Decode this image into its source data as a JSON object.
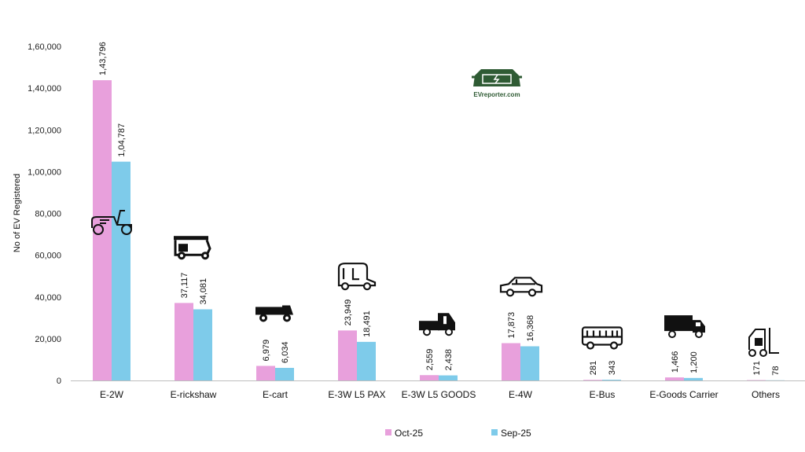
{
  "chart_data": {
    "type": "bar",
    "ylabel": "No of EV Registered",
    "xlabel": "",
    "ylim": [
      0,
      160000
    ],
    "yticks": [
      0,
      20000,
      40000,
      60000,
      80000,
      100000,
      120000,
      140000,
      160000
    ],
    "ytick_labels": [
      "0",
      "20,000",
      "40,000",
      "60,000",
      "80,000",
      "1,00,000",
      "1,20,000",
      "1,40,000",
      "1,60,000"
    ],
    "grid": false,
    "legend_position": "bottom",
    "categories": [
      "E-2W",
      "E-rickshaw",
      "E-cart",
      "E-3W L5 PAX",
      "E-3W L5 GOODS",
      "E-4W",
      "E-Bus",
      "E-Goods Carrier",
      "Others"
    ],
    "series": [
      {
        "name": "Oct-25",
        "color": "#e8a0dc",
        "values": [
          143796,
          37117,
          6979,
          23949,
          2559,
          17873,
          281,
          1466,
          171
        ],
        "labels": [
          "1,43,796",
          "37,117",
          "6,979",
          "23,949",
          "2,559",
          "17,873",
          "281",
          "1,466",
          "171"
        ]
      },
      {
        "name": "Sep-25",
        "color": "#7ecbea",
        "values": [
          104787,
          34081,
          6034,
          18491,
          2438,
          16368,
          343,
          1200,
          78
        ],
        "labels": [
          "1,04,787",
          "34,081",
          "6,034",
          "18,491",
          "2,438",
          "16,368",
          "343",
          "1,200",
          "78"
        ]
      }
    ],
    "category_icons": [
      "scooter-icon",
      "auto-rickshaw-icon",
      "cart-icon",
      "passenger-three-wheeler-icon",
      "goods-three-wheeler-icon",
      "car-icon",
      "bus-icon",
      "truck-icon",
      "forklift-icon"
    ]
  },
  "logo": {
    "text": "EVreporter.com",
    "color": "#2f5b34"
  }
}
